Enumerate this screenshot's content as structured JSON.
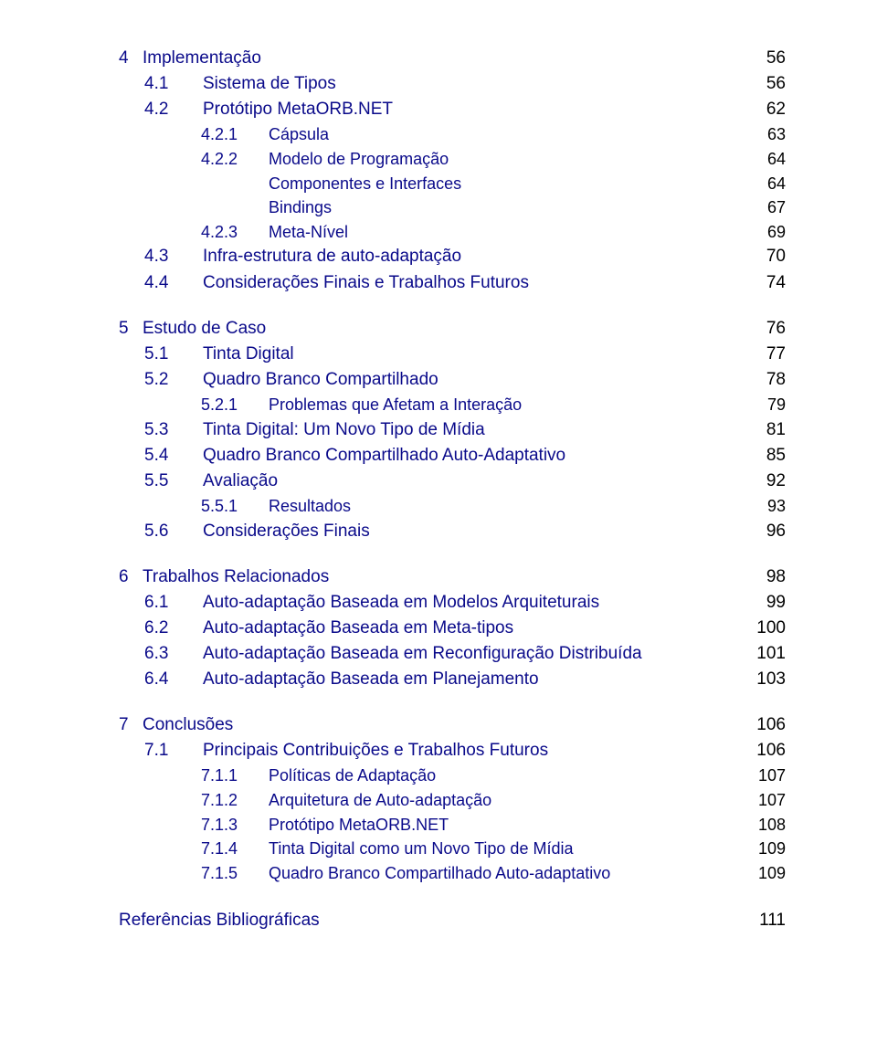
{
  "colors": {
    "link": "#0a0a8a",
    "text_black": "#000000",
    "background": "#ffffff"
  },
  "typography": {
    "chapter_fontsize": 19,
    "section_fontsize": 19,
    "subsection_fontsize": 18
  },
  "toc": [
    {
      "num": "4",
      "title": "Implementação",
      "page": "56",
      "sections": [
        {
          "num": "4.1",
          "title": "Sistema de Tipos",
          "page": "56"
        },
        {
          "num": "4.2",
          "title": "Protótipo MetaORB.NET",
          "page": "62",
          "subs": [
            {
              "num": "4.2.1",
              "title": "Cápsula",
              "page": "63"
            },
            {
              "num": "4.2.2",
              "title": "Modelo de Programação",
              "page": "64"
            },
            {
              "num": "",
              "title": "Componentes e Interfaces",
              "page": "64"
            },
            {
              "num": "",
              "title": "Bindings",
              "page": "67"
            },
            {
              "num": "4.2.3",
              "title": "Meta-Nível",
              "page": "69"
            }
          ]
        },
        {
          "num": "4.3",
          "title": "Infra-estrutura de auto-adaptação",
          "page": "70"
        },
        {
          "num": "4.4",
          "title": "Considerações Finais e Trabalhos Futuros",
          "page": "74"
        }
      ]
    },
    {
      "num": "5",
      "title": "Estudo de Caso",
      "page": "76",
      "sections": [
        {
          "num": "5.1",
          "title": "Tinta Digital",
          "page": "77"
        },
        {
          "num": "5.2",
          "title": "Quadro Branco Compartilhado",
          "page": "78",
          "subs": [
            {
              "num": "5.2.1",
              "title": "Problemas que Afetam a Interação",
              "page": "79"
            }
          ]
        },
        {
          "num": "5.3",
          "title": "Tinta Digital: Um Novo Tipo de Mídia",
          "page": "81"
        },
        {
          "num": "5.4",
          "title": "Quadro Branco Compartilhado Auto-Adaptativo",
          "page": "85"
        },
        {
          "num": "5.5",
          "title": "Avaliação",
          "page": "92",
          "subs": [
            {
              "num": "5.5.1",
              "title": "Resultados",
              "page": "93"
            }
          ]
        },
        {
          "num": "5.6",
          "title": "Considerações Finais",
          "page": "96"
        }
      ]
    },
    {
      "num": "6",
      "title": "Trabalhos Relacionados",
      "page": "98",
      "sections": [
        {
          "num": "6.1",
          "title": "Auto-adaptação Baseada em Modelos Arquiteturais",
          "page": "99"
        },
        {
          "num": "6.2",
          "title": "Auto-adaptação Baseada em Meta-tipos",
          "page": "100"
        },
        {
          "num": "6.3",
          "title": "Auto-adaptação Baseada em Reconfiguração Distribuída",
          "page": "101"
        },
        {
          "num": "6.4",
          "title": "Auto-adaptação Baseada em Planejamento",
          "page": "103"
        }
      ]
    },
    {
      "num": "7",
      "title": "Conclusões",
      "page": "106",
      "sections": [
        {
          "num": "7.1",
          "title": "Principais Contribuições e Trabalhos Futuros",
          "page": "106",
          "subs": [
            {
              "num": "7.1.1",
              "title": "Políticas de Adaptação",
              "page": "107"
            },
            {
              "num": "7.1.2",
              "title": "Arquitetura de Auto-adaptação",
              "page": "107"
            },
            {
              "num": "7.1.3",
              "title": "Protótipo MetaORB.NET",
              "page": "108"
            },
            {
              "num": "7.1.4",
              "title": "Tinta Digital como um Novo Tipo de Mídia",
              "page": "109"
            },
            {
              "num": "7.1.5",
              "title": "Quadro Branco Compartilhado Auto-adaptativo",
              "page": "109"
            }
          ]
        }
      ]
    }
  ],
  "references": {
    "title": "Referências Bibliográficas",
    "page": "111"
  }
}
